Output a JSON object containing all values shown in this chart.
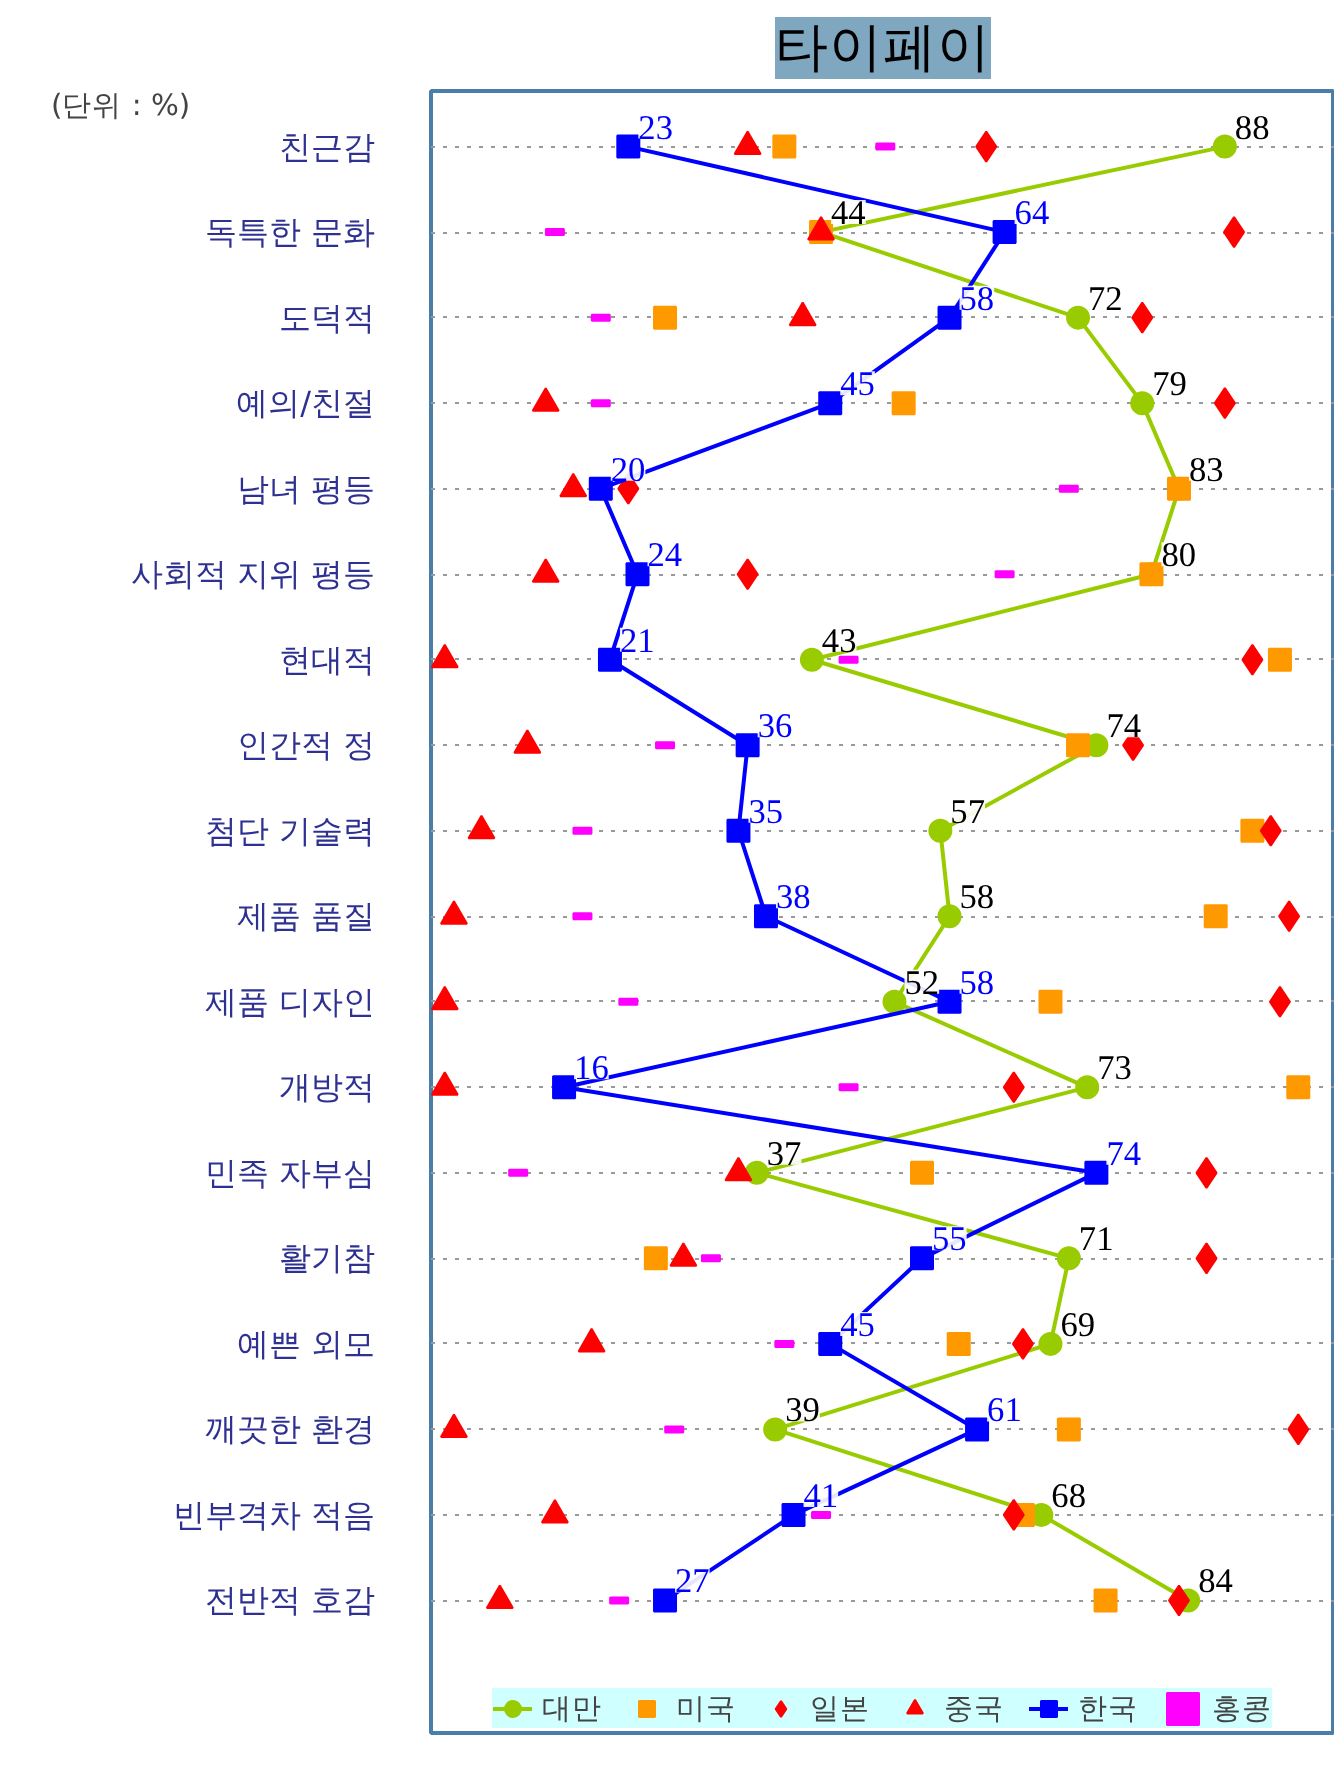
{
  "chart_data": {
    "type": "scatter",
    "title": "타이페이",
    "subtitle": "(단위 : %)",
    "orientation": "horizontal",
    "categories": [
      "친근감",
      "독특한 문화",
      "도덕적",
      "예의/친절",
      "남녀 평등",
      "사회적 지위 평등",
      "현대적",
      "인간적 정",
      "첨단 기술력",
      "제품 품질",
      "제품 디자인",
      "개방적",
      "민족 자부심",
      "활기참",
      "예쁜 외모",
      "깨끗한 환경",
      "빈부격차 적음",
      "전반적 호감"
    ],
    "xlim": [
      1.5,
      100
    ],
    "grid": "y",
    "legend": "bottom",
    "series": [
      {
        "name": "대만",
        "type": "line",
        "marker": "circle",
        "color": "#99cc00",
        "values": [
          88,
          44,
          72,
          79,
          83,
          80,
          43,
          74,
          57,
          58,
          52,
          73,
          37,
          71,
          69,
          39,
          68,
          84
        ],
        "value_labels": [
          "88",
          "44",
          "72",
          "79",
          "83",
          "80",
          "43",
          "74",
          "57",
          "58",
          "52",
          "73",
          "37",
          "71",
          "69",
          "39",
          "68",
          "84"
        ]
      },
      {
        "name": "미국",
        "marker": "square",
        "color": "#ff9900",
        "values": [
          40,
          44,
          27,
          53,
          83,
          80,
          94,
          72,
          91,
          87,
          69,
          96,
          55,
          26,
          59,
          71,
          66,
          75
        ]
      },
      {
        "name": "일본",
        "marker": "diamond",
        "color": "#ff0000",
        "values": [
          62,
          89,
          79,
          88,
          23,
          36,
          91,
          78,
          93,
          95,
          94,
          65,
          86,
          86,
          66,
          96,
          65,
          83
        ]
      },
      {
        "name": "중국",
        "marker": "triangle",
        "color": "#ff0000",
        "values": [
          36,
          44,
          42,
          14,
          17,
          14,
          3,
          12,
          7,
          4,
          3,
          3,
          35,
          29,
          19,
          4,
          15,
          9
        ]
      },
      {
        "name": "한국",
        "type": "line",
        "marker": "square",
        "color": "#0000ff",
        "values": [
          23,
          64,
          58,
          45,
          20,
          24,
          21,
          36,
          35,
          38,
          58,
          16,
          74,
          55,
          45,
          61,
          41,
          27
        ],
        "value_labels": [
          "23",
          "64",
          "58",
          "45",
          "20",
          "24",
          "21",
          "36",
          "35",
          "38",
          "58",
          "16",
          "74",
          "55",
          "45",
          "61",
          "41",
          "27"
        ]
      },
      {
        "name": "홍콩",
        "color": "#ff00ff",
        "values": [
          51,
          15,
          20,
          20,
          71,
          64,
          47,
          27,
          18,
          18,
          23,
          47,
          11,
          32,
          40,
          28,
          44,
          22
        ]
      }
    ]
  }
}
